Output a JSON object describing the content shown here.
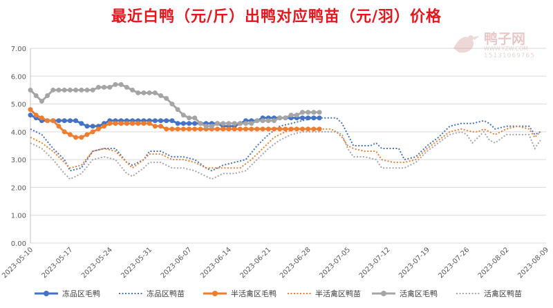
{
  "chart_data": {
    "type": "line",
    "title": "最近白鸭（元/斤）出鸭对应鸭苗（元/羽）价格",
    "xlabel": "",
    "ylabel": "",
    "ylim": [
      0,
      7
    ],
    "yticks": [
      "0.00",
      "1.00",
      "2.00",
      "3.00",
      "4.00",
      "5.00",
      "6.00",
      "7.00"
    ],
    "xticks": [
      "2023-05-10",
      "2023-05-17",
      "2023-05-24",
      "2023-05-31",
      "2023-06-07",
      "2023-06-14",
      "2023-06-21",
      "2023-06-28",
      "2023-07-05",
      "2023-07-12",
      "2023-07-19",
      "2023-07-26",
      "2023-08-02",
      "2023-08-09"
    ],
    "x_start": "2023-05-10",
    "x_end": "2023-08-09",
    "grid": "horizontal",
    "legend_position": "bottom",
    "series": [
      {
        "name": "冻品区毛鸭",
        "color": "#4472c4",
        "style": "solid-marker",
        "points": [
          [
            0,
            4.6
          ],
          [
            1,
            4.5
          ],
          [
            2,
            4.4
          ],
          [
            3,
            4.4
          ],
          [
            4,
            4.4
          ],
          [
            5,
            4.4
          ],
          [
            6,
            4.4
          ],
          [
            7,
            4.4
          ],
          [
            8,
            4.4
          ],
          [
            9,
            4.3
          ],
          [
            10,
            4.2
          ],
          [
            11,
            4.2
          ],
          [
            12,
            4.2
          ],
          [
            13,
            4.3
          ],
          [
            14,
            4.4
          ],
          [
            15,
            4.4
          ],
          [
            16,
            4.4
          ],
          [
            17,
            4.4
          ],
          [
            18,
            4.4
          ],
          [
            19,
            4.4
          ],
          [
            20,
            4.4
          ],
          [
            21,
            4.4
          ],
          [
            22,
            4.4
          ],
          [
            23,
            4.4
          ],
          [
            24,
            4.4
          ],
          [
            25,
            4.4
          ],
          [
            26,
            4.3
          ],
          [
            27,
            4.3
          ],
          [
            28,
            4.3
          ],
          [
            29,
            4.3
          ],
          [
            30,
            4.3
          ],
          [
            31,
            4.3
          ],
          [
            32,
            4.3
          ],
          [
            33,
            4.3
          ],
          [
            34,
            4.2
          ],
          [
            35,
            4.2
          ],
          [
            36,
            4.2
          ],
          [
            37,
            4.3
          ],
          [
            38,
            4.4
          ],
          [
            39,
            4.4
          ],
          [
            40,
            4.4
          ],
          [
            41,
            4.5
          ],
          [
            42,
            4.5
          ],
          [
            43,
            4.5
          ],
          [
            44,
            4.5
          ],
          [
            45,
            4.5
          ],
          [
            46,
            4.5
          ],
          [
            47,
            4.5
          ],
          [
            48,
            4.5
          ],
          [
            49,
            4.5
          ],
          [
            50,
            4.5
          ],
          [
            51,
            4.5
          ]
        ]
      },
      {
        "name": "冻品区鸭苗",
        "color": "#4472c4",
        "style": "dotted",
        "points": [
          [
            0,
            4.1
          ],
          [
            2,
            3.9
          ],
          [
            4,
            3.4
          ],
          [
            6,
            3.0
          ],
          [
            7,
            2.6
          ],
          [
            9,
            2.7
          ],
          [
            11,
            3.3
          ],
          [
            13,
            3.4
          ],
          [
            15,
            3.4
          ],
          [
            17,
            2.9
          ],
          [
            18,
            2.8
          ],
          [
            20,
            3.0
          ],
          [
            21,
            3.3
          ],
          [
            23,
            3.3
          ],
          [
            25,
            3.1
          ],
          [
            27,
            3.1
          ],
          [
            29,
            3.0
          ],
          [
            31,
            2.7
          ],
          [
            32,
            2.6
          ],
          [
            34,
            2.8
          ],
          [
            36,
            2.9
          ],
          [
            38,
            3.0
          ],
          [
            40,
            3.5
          ],
          [
            42,
            3.9
          ],
          [
            44,
            4.2
          ],
          [
            46,
            4.3
          ],
          [
            48,
            4.4
          ],
          [
            50,
            4.5
          ],
          [
            52,
            4.5
          ],
          [
            54,
            4.5
          ],
          [
            55,
            4.3
          ],
          [
            56,
            3.9
          ],
          [
            57,
            3.5
          ],
          [
            58,
            3.5
          ],
          [
            60,
            3.5
          ],
          [
            61,
            3.6
          ],
          [
            62,
            3.4
          ],
          [
            64,
            3.4
          ],
          [
            65,
            3.4
          ],
          [
            66,
            3.0
          ],
          [
            68,
            3.1
          ],
          [
            70,
            3.5
          ],
          [
            72,
            3.8
          ],
          [
            74,
            4.2
          ],
          [
            76,
            4.3
          ],
          [
            78,
            4.3
          ],
          [
            80,
            4.4
          ],
          [
            81,
            4.3
          ],
          [
            82,
            4.1
          ],
          [
            84,
            4.2
          ],
          [
            86,
            4.2
          ],
          [
            88,
            4.2
          ],
          [
            89,
            3.9
          ],
          [
            90,
            4.0
          ]
        ]
      },
      {
        "name": "半活禽区毛鸭",
        "color": "#ed7d31",
        "style": "solid-marker",
        "points": [
          [
            0,
            4.8
          ],
          [
            1,
            4.6
          ],
          [
            2,
            4.5
          ],
          [
            3,
            4.4
          ],
          [
            4,
            4.4
          ],
          [
            5,
            4.2
          ],
          [
            6,
            4.0
          ],
          [
            7,
            3.9
          ],
          [
            8,
            3.8
          ],
          [
            9,
            3.8
          ],
          [
            10,
            3.9
          ],
          [
            11,
            4.0
          ],
          [
            12,
            4.1
          ],
          [
            13,
            4.2
          ],
          [
            14,
            4.3
          ],
          [
            15,
            4.3
          ],
          [
            16,
            4.3
          ],
          [
            17,
            4.3
          ],
          [
            18,
            4.3
          ],
          [
            19,
            4.3
          ],
          [
            20,
            4.3
          ],
          [
            21,
            4.3
          ],
          [
            22,
            4.2
          ],
          [
            23,
            4.2
          ],
          [
            24,
            4.1
          ],
          [
            25,
            4.1
          ],
          [
            26,
            4.1
          ],
          [
            27,
            4.1
          ],
          [
            28,
            4.1
          ],
          [
            29,
            4.1
          ],
          [
            30,
            4.1
          ],
          [
            31,
            4.1
          ],
          [
            32,
            4.1
          ],
          [
            33,
            4.1
          ],
          [
            34,
            4.1
          ],
          [
            35,
            4.1
          ],
          [
            36,
            4.1
          ],
          [
            37,
            4.1
          ],
          [
            38,
            4.1
          ],
          [
            39,
            4.1
          ],
          [
            40,
            4.1
          ],
          [
            41,
            4.1
          ],
          [
            42,
            4.1
          ],
          [
            43,
            4.1
          ],
          [
            44,
            4.1
          ],
          [
            45,
            4.1
          ],
          [
            46,
            4.1
          ],
          [
            47,
            4.1
          ],
          [
            48,
            4.1
          ],
          [
            49,
            4.1
          ],
          [
            50,
            4.1
          ],
          [
            51,
            4.1
          ]
        ]
      },
      {
        "name": "半活禽区鸭苗",
        "color": "#ed7d31",
        "style": "dotted",
        "points": [
          [
            0,
            3.8
          ],
          [
            2,
            3.6
          ],
          [
            4,
            3.3
          ],
          [
            6,
            2.9
          ],
          [
            7,
            2.7
          ],
          [
            9,
            2.8
          ],
          [
            11,
            3.3
          ],
          [
            13,
            3.4
          ],
          [
            15,
            3.3
          ],
          [
            17,
            2.9
          ],
          [
            18,
            2.7
          ],
          [
            20,
            3.0
          ],
          [
            21,
            3.2
          ],
          [
            23,
            3.2
          ],
          [
            25,
            3.0
          ],
          [
            27,
            3.0
          ],
          [
            29,
            2.9
          ],
          [
            31,
            2.7
          ],
          [
            33,
            2.7
          ],
          [
            35,
            2.7
          ],
          [
            37,
            2.7
          ],
          [
            39,
            3.0
          ],
          [
            41,
            3.4
          ],
          [
            43,
            3.8
          ],
          [
            45,
            4.0
          ],
          [
            47,
            4.1
          ],
          [
            49,
            4.1
          ],
          [
            51,
            4.1
          ],
          [
            53,
            4.1
          ],
          [
            54,
            4.0
          ],
          [
            55,
            3.8
          ],
          [
            56,
            3.5
          ],
          [
            57,
            3.4
          ],
          [
            59,
            3.3
          ],
          [
            61,
            3.3
          ],
          [
            62,
            3.0
          ],
          [
            64,
            2.9
          ],
          [
            66,
            2.9
          ],
          [
            68,
            3.0
          ],
          [
            70,
            3.4
          ],
          [
            72,
            3.7
          ],
          [
            74,
            4.0
          ],
          [
            76,
            4.1
          ],
          [
            78,
            4.0
          ],
          [
            79,
            4.0
          ],
          [
            80,
            4.1
          ],
          [
            81,
            4.0
          ],
          [
            82,
            3.9
          ],
          [
            84,
            4.1
          ],
          [
            86,
            4.2
          ],
          [
            88,
            4.1
          ],
          [
            89,
            3.8
          ],
          [
            90,
            4.0
          ]
        ]
      },
      {
        "name": "活禽区毛鸭",
        "color": "#a5a5a5",
        "style": "solid-marker",
        "points": [
          [
            0,
            5.5
          ],
          [
            1,
            5.3
          ],
          [
            2,
            5.1
          ],
          [
            3,
            5.3
          ],
          [
            4,
            5.5
          ],
          [
            5,
            5.5
          ],
          [
            6,
            5.5
          ],
          [
            7,
            5.5
          ],
          [
            8,
            5.5
          ],
          [
            9,
            5.5
          ],
          [
            10,
            5.5
          ],
          [
            11,
            5.5
          ],
          [
            12,
            5.6
          ],
          [
            13,
            5.6
          ],
          [
            14,
            5.6
          ],
          [
            15,
            5.7
          ],
          [
            16,
            5.7
          ],
          [
            17,
            5.6
          ],
          [
            18,
            5.5
          ],
          [
            19,
            5.4
          ],
          [
            20,
            5.4
          ],
          [
            21,
            5.4
          ],
          [
            22,
            5.4
          ],
          [
            23,
            5.3
          ],
          [
            24,
            5.2
          ],
          [
            25,
            5.0
          ],
          [
            26,
            4.8
          ],
          [
            27,
            4.6
          ],
          [
            28,
            4.5
          ],
          [
            29,
            4.5
          ],
          [
            30,
            4.3
          ],
          [
            31,
            4.2
          ],
          [
            32,
            4.2
          ],
          [
            33,
            4.3
          ],
          [
            34,
            4.3
          ],
          [
            35,
            4.3
          ],
          [
            36,
            4.3
          ],
          [
            37,
            4.3
          ],
          [
            38,
            4.3
          ],
          [
            39,
            4.3
          ],
          [
            40,
            4.4
          ],
          [
            41,
            4.4
          ],
          [
            42,
            4.4
          ],
          [
            43,
            4.4
          ],
          [
            44,
            4.5
          ],
          [
            45,
            4.5
          ],
          [
            46,
            4.6
          ],
          [
            47,
            4.6
          ],
          [
            48,
            4.7
          ],
          [
            49,
            4.7
          ],
          [
            50,
            4.7
          ],
          [
            51,
            4.7
          ]
        ]
      },
      {
        "name": "活禽区鸭苗",
        "color": "#a5a5a5",
        "style": "dotted",
        "points": [
          [
            0,
            3.6
          ],
          [
            2,
            3.4
          ],
          [
            4,
            3.0
          ],
          [
            6,
            2.5
          ],
          [
            7,
            2.3
          ],
          [
            9,
            2.5
          ],
          [
            11,
            3.0
          ],
          [
            13,
            3.1
          ],
          [
            15,
            3.0
          ],
          [
            17,
            2.5
          ],
          [
            18,
            2.4
          ],
          [
            20,
            2.7
          ],
          [
            21,
            2.9
          ],
          [
            23,
            2.9
          ],
          [
            25,
            2.7
          ],
          [
            27,
            2.7
          ],
          [
            29,
            2.6
          ],
          [
            31,
            2.4
          ],
          [
            32,
            2.3
          ],
          [
            34,
            2.5
          ],
          [
            36,
            2.5
          ],
          [
            38,
            2.6
          ],
          [
            40,
            3.0
          ],
          [
            42,
            3.4
          ],
          [
            44,
            3.7
          ],
          [
            46,
            3.9
          ],
          [
            48,
            4.0
          ],
          [
            50,
            4.0
          ],
          [
            52,
            4.0
          ],
          [
            54,
            4.0
          ],
          [
            55,
            3.9
          ],
          [
            56,
            3.4
          ],
          [
            57,
            3.1
          ],
          [
            59,
            3.1
          ],
          [
            61,
            3.0
          ],
          [
            62,
            2.7
          ],
          [
            64,
            2.7
          ],
          [
            66,
            2.7
          ],
          [
            68,
            2.9
          ],
          [
            70,
            3.3
          ],
          [
            72,
            3.6
          ],
          [
            74,
            3.9
          ],
          [
            76,
            4.0
          ],
          [
            77,
            3.9
          ],
          [
            78,
            3.6
          ],
          [
            79,
            3.8
          ],
          [
            80,
            4.0
          ],
          [
            81,
            3.7
          ],
          [
            82,
            3.6
          ],
          [
            84,
            3.9
          ],
          [
            86,
            3.9
          ],
          [
            88,
            3.9
          ],
          [
            89,
            3.4
          ],
          [
            90,
            3.7
          ]
        ]
      }
    ]
  },
  "watermark": {
    "brand": "鸭子网",
    "site": "WWW.YZW.COM",
    "phone": "15131069765"
  }
}
